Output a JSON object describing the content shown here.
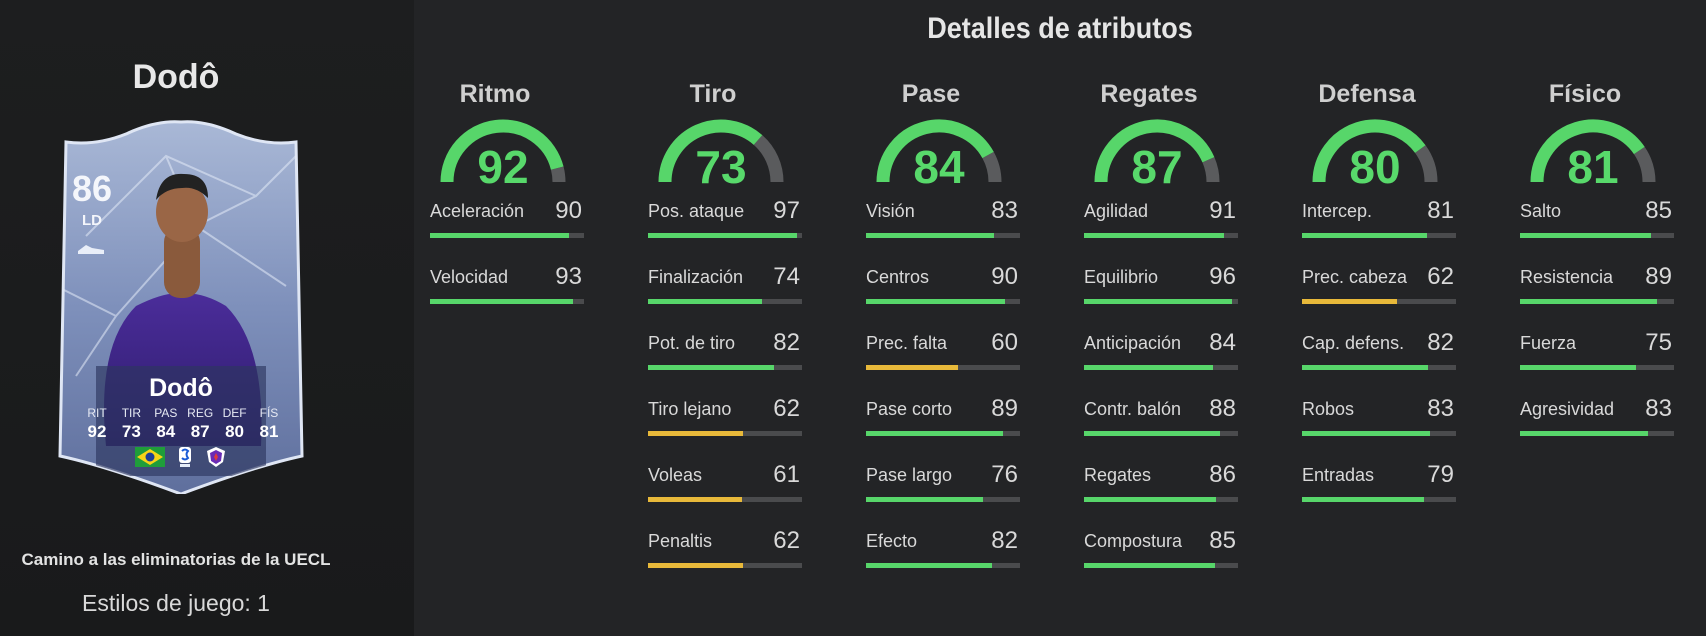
{
  "player": {
    "name": "Dodô",
    "card": {
      "rating": "86",
      "position": "LD",
      "name": "Dodô",
      "stat_labels": [
        "RIT",
        "TIR",
        "PAS",
        "REG",
        "DEF",
        "FÍS"
      ],
      "stat_values": [
        "92",
        "73",
        "84",
        "87",
        "80",
        "81"
      ],
      "nation_icon": "brazil-flag",
      "league_icon": "serie-a-logo",
      "club_icon": "fiorentina-crest"
    },
    "promo": "Camino a las eliminatorias de la UECL",
    "playstyles": "Estilos de juego: 1"
  },
  "details": {
    "title": "Detalles de atributos",
    "colors": {
      "high": "#57d66a",
      "mid": "#e8b93a",
      "track": "#4a4b4d"
    },
    "categories": [
      {
        "name": "Ritmo",
        "value": "92",
        "attributes": [
          {
            "name": "Aceleración",
            "value": "90"
          },
          {
            "name": "Velocidad",
            "value": "93"
          }
        ]
      },
      {
        "name": "Tiro",
        "value": "73",
        "attributes": [
          {
            "name": "Pos. ataque",
            "value": "97"
          },
          {
            "name": "Finalización",
            "value": "74"
          },
          {
            "name": "Pot. de tiro",
            "value": "82"
          },
          {
            "name": "Tiro lejano",
            "value": "62"
          },
          {
            "name": "Voleas",
            "value": "61"
          },
          {
            "name": "Penaltis",
            "value": "62"
          }
        ]
      },
      {
        "name": "Pase",
        "value": "84",
        "attributes": [
          {
            "name": "Visión",
            "value": "83"
          },
          {
            "name": "Centros",
            "value": "90"
          },
          {
            "name": "Prec. falta",
            "value": "60"
          },
          {
            "name": "Pase corto",
            "value": "89"
          },
          {
            "name": "Pase largo",
            "value": "76"
          },
          {
            "name": "Efecto",
            "value": "82"
          }
        ]
      },
      {
        "name": "Regates",
        "value": "87",
        "attributes": [
          {
            "name": "Agilidad",
            "value": "91"
          },
          {
            "name": "Equilibrio",
            "value": "96"
          },
          {
            "name": "Anticipación",
            "value": "84"
          },
          {
            "name": "Contr. balón",
            "value": "88"
          },
          {
            "name": "Regates",
            "value": "86"
          },
          {
            "name": "Compostura",
            "value": "85"
          }
        ]
      },
      {
        "name": "Defensa",
        "value": "80",
        "attributes": [
          {
            "name": "Intercep.",
            "value": "81"
          },
          {
            "name": "Prec. cabeza",
            "value": "62"
          },
          {
            "name": "Cap. defens.",
            "value": "82"
          },
          {
            "name": "Robos",
            "value": "83"
          },
          {
            "name": "Entradas",
            "value": "79"
          }
        ]
      },
      {
        "name": "Físico",
        "value": "81",
        "attributes": [
          {
            "name": "Salto",
            "value": "85"
          },
          {
            "name": "Resistencia",
            "value": "89"
          },
          {
            "name": "Fuerza",
            "value": "75"
          },
          {
            "name": "Agresividad",
            "value": "83"
          }
        ]
      }
    ]
  }
}
